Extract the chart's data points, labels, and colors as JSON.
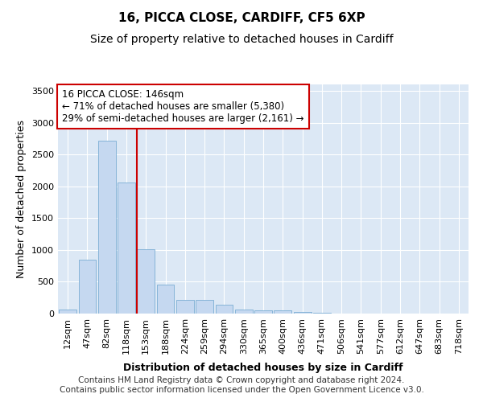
{
  "title": "16, PICCA CLOSE, CARDIFF, CF5 6XP",
  "subtitle": "Size of property relative to detached houses in Cardiff",
  "xlabel": "Distribution of detached houses by size in Cardiff",
  "ylabel": "Number of detached properties",
  "categories": [
    "12sqm",
    "47sqm",
    "82sqm",
    "118sqm",
    "153sqm",
    "188sqm",
    "224sqm",
    "259sqm",
    "294sqm",
    "330sqm",
    "365sqm",
    "400sqm",
    "436sqm",
    "471sqm",
    "506sqm",
    "541sqm",
    "577sqm",
    "612sqm",
    "647sqm",
    "683sqm",
    "718sqm"
  ],
  "values": [
    65,
    850,
    2720,
    2060,
    1005,
    455,
    215,
    215,
    135,
    65,
    55,
    45,
    25,
    10,
    5,
    3,
    2,
    1,
    1,
    1,
    1
  ],
  "bar_color": "#c5d8f0",
  "bar_edge_color": "#7aadd4",
  "vline_x": 4.0,
  "vline_color": "#cc0000",
  "annotation_text": "16 PICCA CLOSE: 146sqm\n← 71% of detached houses are smaller (5,380)\n29% of semi-detached houses are larger (2,161) →",
  "annotation_box_color": "#cc0000",
  "ylim": [
    0,
    3600
  ],
  "yticks": [
    0,
    500,
    1000,
    1500,
    2000,
    2500,
    3000,
    3500
  ],
  "fig_bg_color": "#ffffff",
  "plot_bg_color": "#dce8f5",
  "grid_color": "#ffffff",
  "footer": "Contains HM Land Registry data © Crown copyright and database right 2024.\nContains public sector information licensed under the Open Government Licence v3.0.",
  "title_fontsize": 11,
  "subtitle_fontsize": 10,
  "xlabel_fontsize": 9,
  "ylabel_fontsize": 9,
  "tick_fontsize": 8,
  "footer_fontsize": 7.5,
  "annot_fontsize": 8.5
}
